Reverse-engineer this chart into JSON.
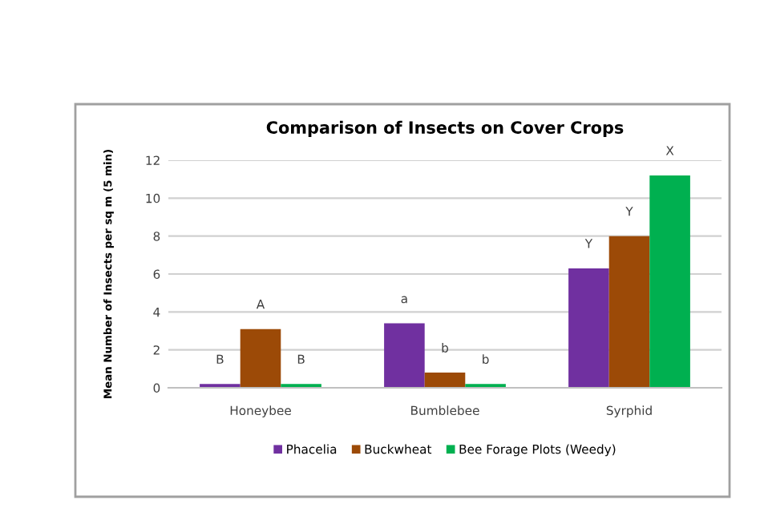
{
  "chart_data": {
    "type": "bar",
    "title": "Comparison of Insects on Cover Crops",
    "ylabel": "Mean Number of Insects per sq m (5 min)",
    "categories": [
      "Honeybee",
      "Bumblebee",
      "Syrphid"
    ],
    "series": [
      {
        "name": "Phacelia",
        "color": "#7030a0",
        "values": [
          0.2,
          3.4,
          6.3
        ]
      },
      {
        "name": "Buckwheat",
        "color": "#9c4a07",
        "values": [
          3.1,
          0.8,
          8.0
        ]
      },
      {
        "name": "Bee Forage Plots (Weedy)",
        "color": "#00b050",
        "values": [
          0.2,
          0.2,
          11.2
        ]
      }
    ],
    "annotations": [
      "B",
      "A",
      "B",
      "a",
      "b",
      "b",
      "Y",
      "Y",
      "X"
    ],
    "ylim": [
      0,
      12
    ],
    "yticks": [
      0,
      2,
      4,
      6,
      8,
      10,
      12
    ],
    "grid": "y",
    "legend": "bottom"
  }
}
